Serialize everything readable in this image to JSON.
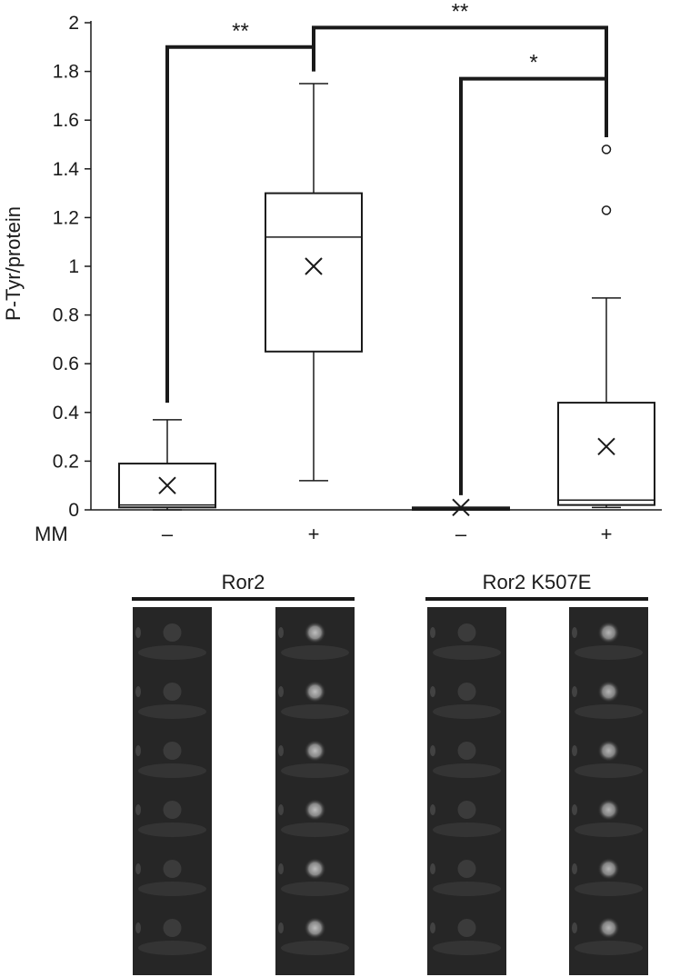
{
  "chart_data": {
    "type": "box",
    "ylabel": "P-Tyr/protein",
    "ylim": [
      0,
      2
    ],
    "yticks": [
      "0",
      "0.2",
      "0.4",
      "0.6",
      "0.8",
      "1",
      "1.2",
      "1.4",
      "1.6",
      "1.8",
      "2"
    ],
    "row_label": "MM",
    "categories": [
      "–",
      "+",
      "–",
      "+"
    ],
    "groups": [
      "Ror2",
      "Ror2 K507E"
    ],
    "boxes": [
      {
        "group": "Ror2",
        "mm": "–",
        "whisker_low": 0.0,
        "q1": 0.01,
        "median": 0.02,
        "q3": 0.19,
        "whisker_high": 0.37,
        "mean": 0.1,
        "outliers": []
      },
      {
        "group": "Ror2",
        "mm": "+",
        "whisker_low": 0.12,
        "q1": 0.65,
        "median": 1.12,
        "q3": 1.3,
        "whisker_high": 1.75,
        "mean": 1.0,
        "outliers": []
      },
      {
        "group": "Ror2 K507E",
        "mm": "–",
        "whisker_low": 0.0,
        "q1": 0.0,
        "median": 0.005,
        "q3": 0.01,
        "whisker_high": 0.01,
        "mean": 0.01,
        "outliers": []
      },
      {
        "group": "Ror2 K507E",
        "mm": "+",
        "whisker_low": 0.01,
        "q1": 0.02,
        "median": 0.04,
        "q3": 0.44,
        "whisker_high": 0.87,
        "mean": 0.26,
        "outliers": [
          1.23,
          1.48
        ]
      }
    ],
    "significance": [
      {
        "from": 0,
        "to": 1,
        "label": "**"
      },
      {
        "from": 1,
        "to": 3,
        "label": "**"
      },
      {
        "from": 2,
        "to": 3,
        "label": "*"
      }
    ],
    "grid": false,
    "legend": "none"
  },
  "blots": {
    "lanes_per_group": 2,
    "spots_per_lane": 6,
    "lane_intensity": [
      0.15,
      0.85,
      0.12,
      0.8
    ]
  }
}
